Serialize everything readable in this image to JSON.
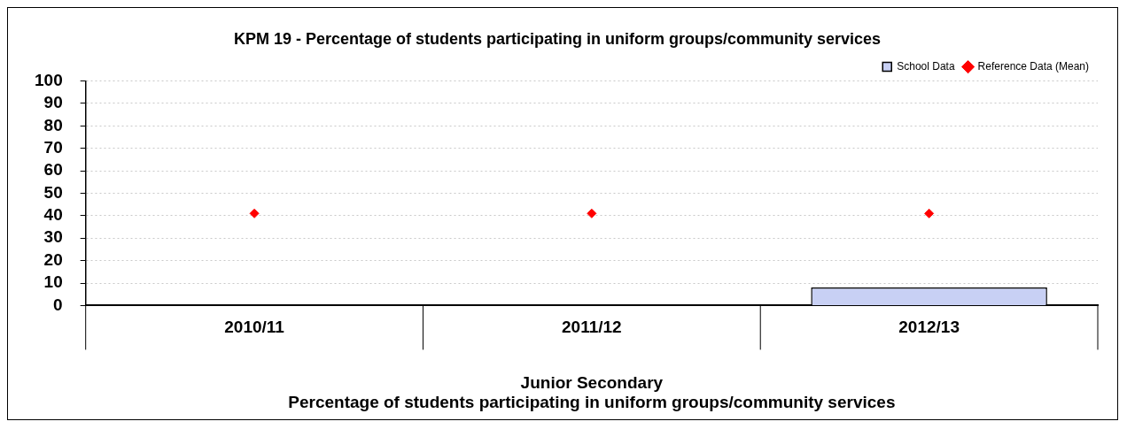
{
  "chart_data": {
    "type": "bar",
    "title": "KPM 19 - Percentage of students participating in uniform groups/community services",
    "categories": [
      "2010/11",
      "2011/12",
      "2012/13"
    ],
    "series": [
      {
        "name": "School Data",
        "color": "#c8d0f4",
        "values": [
          null,
          null,
          8
        ]
      },
      {
        "name": "Reference Data (Mean)",
        "type": "scatter",
        "color": "#ff0000",
        "marker": "diamond",
        "x": [
          "2010/11",
          "2011/12",
          "2012/13"
        ],
        "values": [
          41,
          41,
          41
        ]
      }
    ],
    "xlabel": "Percentage of students participating in uniform groups/community services",
    "annotations": [
      "Junior Secondary"
    ],
    "ylim": [
      0,
      100
    ],
    "yticks": [
      0,
      10,
      20,
      30,
      40,
      50,
      60,
      70,
      80,
      90,
      100
    ],
    "grid": "y",
    "legend": "top right"
  }
}
